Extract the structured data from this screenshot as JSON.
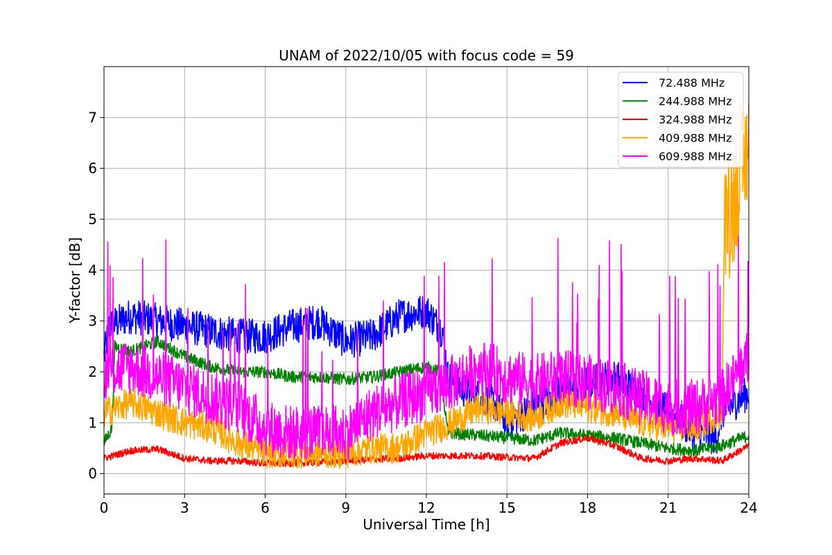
{
  "chart_data": {
    "type": "line",
    "title": "UNAM of 2022/10/05 with focus code = 59",
    "xlabel": "Universal Time [h]",
    "ylabel": "Y-factor [dB]",
    "xlim": [
      0,
      24
    ],
    "ylim": [
      -0.4,
      8.0
    ],
    "xticks": [
      0,
      3,
      6,
      9,
      12,
      15,
      18,
      21,
      24
    ],
    "yticks": [
      0,
      1,
      2,
      3,
      4,
      5,
      6,
      7
    ],
    "grid": true,
    "legend_position": "top-right",
    "series": [
      {
        "name": " 72.488 MHz",
        "color": "#0000ff",
        "noise": 0.35,
        "points": [
          [
            0,
            2.3
          ],
          [
            0.2,
            2.9
          ],
          [
            1,
            3.1
          ],
          [
            2,
            3.0
          ],
          [
            3,
            2.9
          ],
          [
            4,
            2.8
          ],
          [
            5,
            2.7
          ],
          [
            6,
            2.7
          ],
          [
            7,
            2.9
          ],
          [
            8,
            3.0
          ],
          [
            9,
            2.6
          ],
          [
            10,
            2.7
          ],
          [
            11,
            3.1
          ],
          [
            12,
            3.2
          ],
          [
            12.6,
            2.8
          ],
          [
            12.8,
            1.9
          ],
          [
            13.5,
            1.6
          ],
          [
            14.5,
            1.4
          ],
          [
            15,
            1.0
          ],
          [
            16,
            1.3
          ],
          [
            17,
            1.6
          ],
          [
            18,
            1.8
          ],
          [
            19,
            1.9
          ],
          [
            20,
            1.6
          ],
          [
            21,
            1.2
          ],
          [
            22,
            0.8
          ],
          [
            22.8,
            0.7
          ],
          [
            23,
            1.2
          ],
          [
            24,
            1.6
          ]
        ]
      },
      {
        "name": "244.988 MHz",
        "color": "#008000",
        "noise": 0.12,
        "points": [
          [
            0,
            0.6
          ],
          [
            0.3,
            0.9
          ],
          [
            0.4,
            2.5
          ],
          [
            1,
            2.4
          ],
          [
            2,
            2.6
          ],
          [
            3,
            2.3
          ],
          [
            4,
            2.1
          ],
          [
            5,
            2.0
          ],
          [
            6,
            2.0
          ],
          [
            7,
            1.9
          ],
          [
            8,
            1.9
          ],
          [
            9,
            1.85
          ],
          [
            10,
            1.9
          ],
          [
            11,
            2.0
          ],
          [
            12,
            2.1
          ],
          [
            12.5,
            2.0
          ],
          [
            12.8,
            0.8
          ],
          [
            14,
            0.75
          ],
          [
            15,
            0.7
          ],
          [
            16,
            0.65
          ],
          [
            17,
            0.8
          ],
          [
            18,
            0.75
          ],
          [
            19,
            0.7
          ],
          [
            20,
            0.6
          ],
          [
            21,
            0.5
          ],
          [
            22,
            0.45
          ],
          [
            23,
            0.55
          ],
          [
            24,
            0.75
          ]
        ]
      },
      {
        "name": "324.988 MHz",
        "color": "#ff0000",
        "noise": 0.07,
        "points": [
          [
            0,
            0.3
          ],
          [
            1,
            0.45
          ],
          [
            2,
            0.48
          ],
          [
            3,
            0.3
          ],
          [
            4,
            0.25
          ],
          [
            5,
            0.25
          ],
          [
            6,
            0.2
          ],
          [
            7,
            0.2
          ],
          [
            8,
            0.22
          ],
          [
            9,
            0.25
          ],
          [
            10,
            0.28
          ],
          [
            11,
            0.3
          ],
          [
            12,
            0.35
          ],
          [
            13,
            0.35
          ],
          [
            14,
            0.35
          ],
          [
            15,
            0.32
          ],
          [
            16,
            0.3
          ],
          [
            17,
            0.6
          ],
          [
            18,
            0.7
          ],
          [
            19,
            0.55
          ],
          [
            20,
            0.3
          ],
          [
            21,
            0.25
          ],
          [
            22,
            0.3
          ],
          [
            23,
            0.25
          ],
          [
            24,
            0.55
          ]
        ]
      },
      {
        "name": "409.988 MHz",
        "color": "#ffa500",
        "noise": 0.3,
        "points": [
          [
            0,
            1.2
          ],
          [
            1,
            1.4
          ],
          [
            2,
            1.2
          ],
          [
            3,
            1.0
          ],
          [
            4,
            0.9
          ],
          [
            5,
            0.6
          ],
          [
            6,
            0.4
          ],
          [
            7,
            0.4
          ],
          [
            8,
            0.4
          ],
          [
            9,
            0.4
          ],
          [
            10,
            0.5
          ],
          [
            11,
            0.5
          ],
          [
            12,
            0.8
          ],
          [
            13,
            1.0
          ],
          [
            14,
            1.3
          ],
          [
            15,
            1.2
          ],
          [
            16,
            1.1
          ],
          [
            17,
            1.4
          ],
          [
            18,
            1.3
          ],
          [
            19,
            1.2
          ],
          [
            20,
            1.0
          ],
          [
            21,
            0.9
          ],
          [
            22,
            0.9
          ],
          [
            23,
            1.2
          ],
          [
            23.1,
            5.0
          ],
          [
            23.5,
            5.5
          ],
          [
            24,
            6.5
          ]
        ]
      },
      {
        "name": "609.988 MHz",
        "color": "#ff00ff",
        "noise": 0.55,
        "points": [
          [
            0,
            2.0
          ],
          [
            1,
            2.1
          ],
          [
            2,
            1.9
          ],
          [
            3,
            1.7
          ],
          [
            4,
            1.5
          ],
          [
            5,
            1.3
          ],
          [
            6,
            0.9
          ],
          [
            7,
            0.8
          ],
          [
            8,
            0.8
          ],
          [
            9,
            0.8
          ],
          [
            10,
            1.2
          ],
          [
            11,
            1.4
          ],
          [
            12,
            1.6
          ],
          [
            13,
            1.8
          ],
          [
            14,
            2.1
          ],
          [
            15,
            1.9
          ],
          [
            16,
            1.8
          ],
          [
            17,
            1.9
          ],
          [
            18,
            1.8
          ],
          [
            19,
            1.7
          ],
          [
            20,
            1.5
          ],
          [
            21,
            1.3
          ],
          [
            22,
            1.3
          ],
          [
            23,
            1.5
          ],
          [
            24,
            2.3
          ]
        ]
      }
    ]
  }
}
